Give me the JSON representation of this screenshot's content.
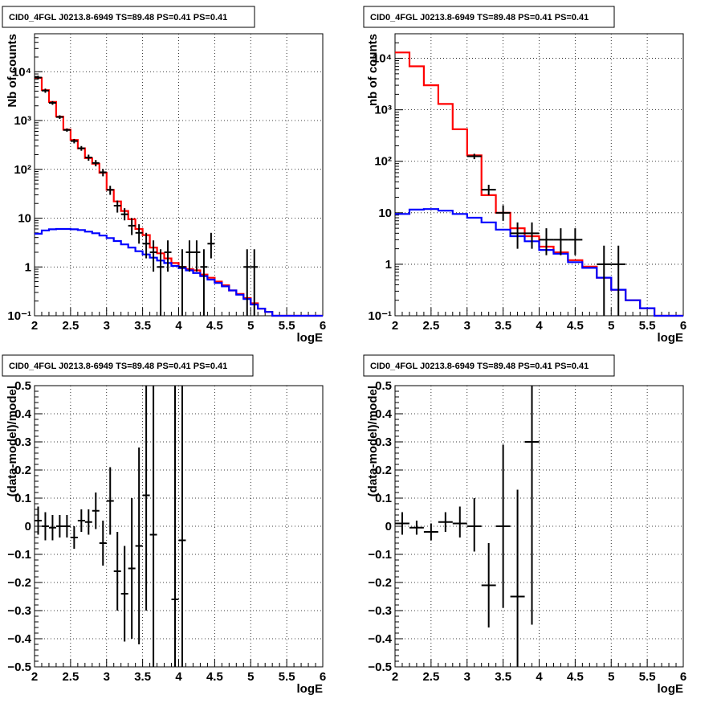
{
  "chart_data": [
    {
      "type": "line",
      "title": "CID0_4FGL J0213.8-6949 TS=89.48 PS=0.41 PS=0.41",
      "xlabel": "logE",
      "ylabel": "Nb of counts",
      "xlim": [
        2,
        6
      ],
      "ylim": [
        0.1,
        60000
      ],
      "yscale": "log",
      "grid": true,
      "x_ticks": [
        "2",
        "2.5",
        "3",
        "3.5",
        "4",
        "4.5",
        "5",
        "5.5",
        "6"
      ],
      "y_ticks": [
        {
          "value": 0.1,
          "label": "10⁻¹"
        },
        {
          "value": 1,
          "label": "1"
        },
        {
          "value": 10,
          "label": "10"
        },
        {
          "value": 100,
          "label": "10²"
        },
        {
          "value": 1000,
          "label": "10³"
        },
        {
          "value": 10000,
          "label": "10⁴"
        }
      ],
      "series": [
        {
          "kind": "step",
          "color": "#ff0000",
          "edges": [
            2.0,
            2.1,
            2.2,
            2.3,
            2.4,
            2.5,
            2.6,
            2.7,
            2.8,
            2.9,
            3.0,
            3.1,
            3.2,
            3.3,
            3.4,
            3.5,
            3.6,
            3.7,
            3.8,
            3.9,
            4.0,
            4.1,
            4.2,
            4.3,
            4.4,
            4.5,
            4.6,
            4.7,
            4.8,
            4.9,
            5.0,
            5.1,
            5.2,
            5.3,
            5.4,
            5.5,
            5.6,
            5.7,
            5.8,
            5.9,
            6.0
          ],
          "values": [
            7500,
            4200,
            2400,
            1200,
            650,
            400,
            270,
            170,
            130,
            85,
            38,
            22,
            14,
            9.5,
            6,
            4.5,
            2.5,
            1.9,
            1.5,
            1.2,
            1.0,
            0.9,
            0.85,
            0.7,
            0.6,
            0.5,
            0.42,
            0.33,
            0.28,
            0.23,
            0.18,
            0.14,
            0.12,
            0.1,
            0.1,
            0.1,
            0.1,
            0.1,
            0.1,
            0.1
          ]
        },
        {
          "kind": "step",
          "color": "#0000ff",
          "edges": [
            2.0,
            2.1,
            2.2,
            2.3,
            2.4,
            2.5,
            2.6,
            2.7,
            2.8,
            2.9,
            3.0,
            3.1,
            3.2,
            3.3,
            3.4,
            3.5,
            3.6,
            3.7,
            3.8,
            3.9,
            4.0,
            4.1,
            4.2,
            4.3,
            4.4,
            4.5,
            4.6,
            4.7,
            4.8,
            4.9,
            5.0,
            5.1,
            5.2,
            5.3,
            5.4,
            5.5,
            5.6,
            5.7,
            5.8,
            5.9,
            6.0
          ],
          "values": [
            4.8,
            5.6,
            5.9,
            6.0,
            6.0,
            5.9,
            5.7,
            5.3,
            4.9,
            4.4,
            3.9,
            3.4,
            2.9,
            2.5,
            2.1,
            1.8,
            1.55,
            1.35,
            1.2,
            1.05,
            0.95,
            0.85,
            0.75,
            0.65,
            0.55,
            0.47,
            0.4,
            0.33,
            0.27,
            0.22,
            0.17,
            0.14,
            0.12,
            0.1,
            0.1,
            0.1,
            0.1,
            0.1,
            0.1,
            0.1
          ]
        }
      ],
      "points": [
        {
          "x": 2.05,
          "y": 7600,
          "lo": 7000,
          "hi": 8300,
          "xerr": 0.05
        },
        {
          "x": 2.15,
          "y": 4100,
          "lo": 3700,
          "hi": 4500,
          "xerr": 0.05
        },
        {
          "x": 2.25,
          "y": 2300,
          "lo": 2100,
          "hi": 2500,
          "xerr": 0.05
        },
        {
          "x": 2.35,
          "y": 1180,
          "lo": 1080,
          "hi": 1280,
          "xerr": 0.05
        },
        {
          "x": 2.45,
          "y": 640,
          "lo": 590,
          "hi": 690,
          "xerr": 0.05
        },
        {
          "x": 2.55,
          "y": 380,
          "lo": 340,
          "hi": 420,
          "xerr": 0.05
        },
        {
          "x": 2.65,
          "y": 270,
          "lo": 240,
          "hi": 300,
          "xerr": 0.05
        },
        {
          "x": 2.75,
          "y": 175,
          "lo": 150,
          "hi": 200,
          "xerr": 0.05
        },
        {
          "x": 2.85,
          "y": 135,
          "lo": 115,
          "hi": 155,
          "xerr": 0.05
        },
        {
          "x": 2.95,
          "y": 87,
          "lo": 72,
          "hi": 102,
          "xerr": 0.05
        },
        {
          "x": 3.05,
          "y": 38,
          "lo": 30,
          "hi": 46,
          "xerr": 0.05
        },
        {
          "x": 3.15,
          "y": 18,
          "lo": 13,
          "hi": 23,
          "xerr": 0.05
        },
        {
          "x": 3.25,
          "y": 12,
          "lo": 9,
          "hi": 16,
          "xerr": 0.05
        },
        {
          "x": 3.35,
          "y": 7,
          "lo": 4.5,
          "hi": 10,
          "xerr": 0.05
        },
        {
          "x": 3.45,
          "y": 5,
          "lo": 3,
          "hi": 7.5,
          "xerr": 0.05
        },
        {
          "x": 3.55,
          "y": 3,
          "lo": 1.5,
          "hi": 5,
          "xerr": 0.05
        },
        {
          "x": 3.65,
          "y": 2,
          "lo": 0.8,
          "hi": 3.5,
          "xerr": 0.05
        },
        {
          "x": 3.75,
          "y": 1,
          "lo": 0.1,
          "hi": 2.3,
          "xerr": 0.05
        },
        {
          "x": 3.85,
          "y": 2,
          "lo": 0.8,
          "hi": 3.5,
          "xerr": 0.05
        },
        {
          "x": 4.05,
          "y": 1,
          "lo": 0.1,
          "hi": 2.3,
          "xerr": 0.05
        },
        {
          "x": 4.15,
          "y": 2,
          "lo": 0.8,
          "hi": 3.5,
          "xerr": 0.05
        },
        {
          "x": 4.25,
          "y": 2,
          "lo": 0.8,
          "hi": 3.5,
          "xerr": 0.05
        },
        {
          "x": 4.35,
          "y": 1,
          "lo": 0.1,
          "hi": 2.3,
          "xerr": 0.05
        },
        {
          "x": 4.45,
          "y": 3,
          "lo": 1.5,
          "hi": 5,
          "xerr": 0.05
        },
        {
          "x": 4.95,
          "y": 1,
          "lo": 0.1,
          "hi": 2.3,
          "xerr": 0.05
        },
        {
          "x": 5.05,
          "y": 1,
          "lo": 0.1,
          "hi": 2.3,
          "xerr": 0.05
        }
      ]
    },
    {
      "type": "line",
      "title": "CID0_4FGL J0213.8-6949 TS=89.48 PS=0.41 PS=0.41",
      "xlabel": "logE",
      "ylabel": "nb of counts",
      "xlim": [
        2,
        6
      ],
      "ylim": [
        0.1,
        30000
      ],
      "yscale": "log",
      "grid": true,
      "x_ticks": [
        "2",
        "2.5",
        "3",
        "3.5",
        "4",
        "4.5",
        "5",
        "5.5",
        "6"
      ],
      "y_ticks": [
        {
          "value": 0.1,
          "label": "10⁻¹"
        },
        {
          "value": 1,
          "label": "1"
        },
        {
          "value": 10,
          "label": "10"
        },
        {
          "value": 100,
          "label": "10²"
        },
        {
          "value": 1000,
          "label": "10³"
        },
        {
          "value": 10000,
          "label": "10⁴"
        }
      ],
      "series": [
        {
          "kind": "step",
          "color": "#ff0000",
          "edges": [
            2.0,
            2.2,
            2.4,
            2.6,
            2.8,
            3.0,
            3.2,
            3.4,
            3.6,
            3.8,
            4.0,
            4.2,
            4.4,
            4.6,
            4.8,
            5.0,
            5.2,
            5.4,
            5.6,
            5.8,
            6.0
          ],
          "values": [
            13000,
            7000,
            3000,
            1300,
            420,
            130,
            22,
            10,
            5,
            3.5,
            2.2,
            1.7,
            1.2,
            0.9,
            0.55,
            0.32,
            0.2,
            0.14,
            0.1,
            0.1
          ]
        },
        {
          "kind": "step",
          "color": "#0000ff",
          "edges": [
            2.0,
            2.2,
            2.4,
            2.6,
            2.8,
            3.0,
            3.2,
            3.4,
            3.6,
            3.8,
            4.0,
            4.2,
            4.4,
            4.6,
            4.8,
            5.0,
            5.2,
            5.4,
            5.6,
            5.8,
            6.0
          ],
          "values": [
            9.5,
            11.5,
            11.8,
            11.0,
            9.5,
            8.0,
            6.5,
            4.7,
            3.5,
            2.8,
            1.9,
            1.6,
            1.1,
            0.85,
            0.55,
            0.32,
            0.2,
            0.14,
            0.1,
            0.1
          ]
        }
      ],
      "points": [
        {
          "x": 3.1,
          "y": 125,
          "lo": 110,
          "hi": 140,
          "xerr": 0.1
        },
        {
          "x": 3.3,
          "y": 28,
          "lo": 22,
          "hi": 35,
          "xerr": 0.1
        },
        {
          "x": 3.5,
          "y": 10,
          "lo": 7,
          "hi": 14,
          "xerr": 0.1
        },
        {
          "x": 3.7,
          "y": 4,
          "lo": 2,
          "hi": 6.5,
          "xerr": 0.1
        },
        {
          "x": 3.9,
          "y": 4,
          "lo": 2,
          "hi": 6.5,
          "xerr": 0.1
        },
        {
          "x": 4.1,
          "y": 3,
          "lo": 1.5,
          "hi": 5,
          "xerr": 0.1
        },
        {
          "x": 4.3,
          "y": 3,
          "lo": 1.5,
          "hi": 5,
          "xerr": 0.1
        },
        {
          "x": 4.5,
          "y": 3,
          "lo": 1.5,
          "hi": 5,
          "xerr": 0.1
        },
        {
          "x": 4.9,
          "y": 1,
          "lo": 0.1,
          "hi": 2.3,
          "xerr": 0.1
        },
        {
          "x": 5.1,
          "y": 1,
          "lo": 0.1,
          "hi": 2.3,
          "xerr": 0.1
        }
      ]
    },
    {
      "type": "scatter",
      "title": "CID0_4FGL J0213.8-6949 TS=89.48 PS=0.41 PS=0.41",
      "xlabel": "logE",
      "ylabel": "(data-model)/model",
      "xlim": [
        2,
        6
      ],
      "ylim": [
        -0.5,
        0.5
      ],
      "yscale": "linear",
      "grid": true,
      "x_ticks": [
        "2",
        "2.5",
        "3",
        "3.5",
        "4",
        "4.5",
        "5",
        "5.5",
        "6"
      ],
      "y_ticks": [
        {
          "value": -0.5,
          "label": "−0.5"
        },
        {
          "value": -0.4,
          "label": "−0.4"
        },
        {
          "value": -0.3,
          "label": "−0.3"
        },
        {
          "value": -0.2,
          "label": "−0.2"
        },
        {
          "value": -0.1,
          "label": "−0.1"
        },
        {
          "value": 0,
          "label": "0"
        },
        {
          "value": 0.1,
          "label": "0.1"
        },
        {
          "value": 0.2,
          "label": "0.2"
        },
        {
          "value": 0.3,
          "label": "0.3"
        },
        {
          "value": 0.4,
          "label": "0.4"
        },
        {
          "value": 0.5,
          "label": "0.5"
        }
      ],
      "points": [
        {
          "x": 2.05,
          "y": 0.02,
          "lo": -0.03,
          "hi": 0.07,
          "xerr": 0.05
        },
        {
          "x": 2.15,
          "y": 0.0,
          "lo": -0.05,
          "hi": 0.05,
          "xerr": 0.05
        },
        {
          "x": 2.25,
          "y": -0.005,
          "lo": -0.05,
          "hi": 0.04,
          "xerr": 0.05
        },
        {
          "x": 2.35,
          "y": 0.0,
          "lo": -0.04,
          "hi": 0.04,
          "xerr": 0.05
        },
        {
          "x": 2.45,
          "y": 0.0,
          "lo": -0.04,
          "hi": 0.04,
          "xerr": 0.05
        },
        {
          "x": 2.55,
          "y": -0.04,
          "lo": -0.08,
          "hi": 0.0,
          "xerr": 0.05
        },
        {
          "x": 2.65,
          "y": 0.02,
          "lo": -0.02,
          "hi": 0.06,
          "xerr": 0.05
        },
        {
          "x": 2.75,
          "y": 0.015,
          "lo": -0.03,
          "hi": 0.06,
          "xerr": 0.05
        },
        {
          "x": 2.85,
          "y": 0.055,
          "lo": -0.01,
          "hi": 0.12,
          "xerr": 0.05
        },
        {
          "x": 2.95,
          "y": -0.06,
          "lo": -0.14,
          "hi": 0.02,
          "xerr": 0.05
        },
        {
          "x": 3.05,
          "y": 0.09,
          "lo": -0.03,
          "hi": 0.21,
          "xerr": 0.05
        },
        {
          "x": 3.15,
          "y": -0.16,
          "lo": -0.3,
          "hi": -0.02,
          "xerr": 0.05
        },
        {
          "x": 3.25,
          "y": -0.24,
          "lo": -0.41,
          "hi": -0.07,
          "xerr": 0.05
        },
        {
          "x": 3.35,
          "y": -0.15,
          "lo": -0.4,
          "hi": 0.1,
          "xerr": 0.05
        },
        {
          "x": 3.45,
          "y": -0.07,
          "lo": -0.42,
          "hi": 0.28,
          "xerr": 0.05
        },
        {
          "x": 3.55,
          "y": 0.11,
          "lo": -0.3,
          "hi": 0.5,
          "xerr": 0.05
        },
        {
          "x": 3.65,
          "y": -0.03,
          "lo": -0.5,
          "hi": 0.5,
          "xerr": 0.05
        },
        {
          "x": 3.95,
          "y": -0.26,
          "lo": -0.5,
          "hi": 0.5,
          "xerr": 0.05
        },
        {
          "x": 4.05,
          "y": -0.05,
          "lo": -0.5,
          "hi": 0.5,
          "xerr": 0.05
        }
      ]
    },
    {
      "type": "scatter",
      "title": "CID0_4FGL J0213.8-6949 TS=89.48 PS=0.41 PS=0.41",
      "xlabel": "logE",
      "ylabel": "(data-model)/model",
      "xlim": [
        2,
        6
      ],
      "ylim": [
        -0.5,
        0.5
      ],
      "yscale": "linear",
      "grid": true,
      "x_ticks": [
        "2",
        "2.5",
        "3",
        "3.5",
        "4",
        "4.5",
        "5",
        "5.5",
        "6"
      ],
      "y_ticks": [
        {
          "value": -0.5,
          "label": "−0.5"
        },
        {
          "value": -0.4,
          "label": "−0.4"
        },
        {
          "value": -0.3,
          "label": "−0.3"
        },
        {
          "value": -0.2,
          "label": "−0.2"
        },
        {
          "value": -0.1,
          "label": "−0.1"
        },
        {
          "value": 0,
          "label": "0"
        },
        {
          "value": 0.1,
          "label": "0.1"
        },
        {
          "value": 0.2,
          "label": "0.2"
        },
        {
          "value": 0.3,
          "label": "0.3"
        },
        {
          "value": 0.4,
          "label": "0.4"
        },
        {
          "value": 0.5,
          "label": "0.5"
        }
      ],
      "points": [
        {
          "x": 2.1,
          "y": 0.01,
          "lo": -0.03,
          "hi": 0.05,
          "xerr": 0.1
        },
        {
          "x": 2.3,
          "y": -0.005,
          "lo": -0.03,
          "hi": 0.02,
          "xerr": 0.1
        },
        {
          "x": 2.5,
          "y": -0.02,
          "lo": -0.05,
          "hi": 0.01,
          "xerr": 0.1
        },
        {
          "x": 2.7,
          "y": 0.015,
          "lo": -0.02,
          "hi": 0.05,
          "xerr": 0.1
        },
        {
          "x": 2.9,
          "y": 0.01,
          "lo": -0.04,
          "hi": 0.07,
          "xerr": 0.1
        },
        {
          "x": 3.1,
          "y": 0.0,
          "lo": -0.09,
          "hi": 0.1,
          "xerr": 0.1
        },
        {
          "x": 3.3,
          "y": -0.21,
          "lo": -0.36,
          "hi": -0.06,
          "xerr": 0.1
        },
        {
          "x": 3.5,
          "y": 0.0,
          "lo": -0.29,
          "hi": 0.29,
          "xerr": 0.1
        },
        {
          "x": 3.7,
          "y": -0.25,
          "lo": -0.5,
          "hi": 0.13,
          "xerr": 0.1
        },
        {
          "x": 3.9,
          "y": 0.3,
          "lo": -0.35,
          "hi": 0.5,
          "xerr": 0.1
        }
      ]
    }
  ]
}
